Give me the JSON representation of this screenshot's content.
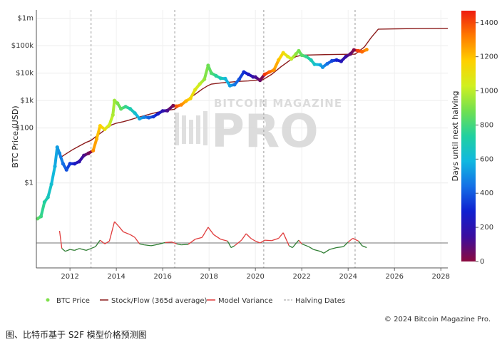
{
  "chart_data": {
    "type": "line",
    "ylabel": "BTC Price (USD)",
    "y_scale": "log",
    "y_ticks": [
      {
        "value": 1,
        "label": "$1"
      },
      {
        "value": 100,
        "label": "$100"
      },
      {
        "value": 1000,
        "label": "$1k"
      },
      {
        "value": 10000,
        "label": "$10k"
      },
      {
        "value": 100000,
        "label": "$100k"
      },
      {
        "value": 1000000,
        "label": "$1m"
      }
    ],
    "x_ticks": [
      "2012",
      "2014",
      "2016",
      "2018",
      "2020",
      "2022",
      "2024",
      "2026",
      "2028"
    ],
    "x_range": [
      2010.55,
      2028.3
    ],
    "y_range": [
      0.0008,
      2000000
    ],
    "halving_dates": [
      2012.91,
      2016.52,
      2020.36,
      2024.3
    ],
    "series": [
      {
        "name": "BTC Price",
        "color_by": "days_until_next_halving",
        "points": [
          [
            2010.6,
            0.05
          ],
          [
            2010.75,
            0.06
          ],
          [
            2010.9,
            0.2
          ],
          [
            2011.05,
            0.3
          ],
          [
            2011.2,
            0.9
          ],
          [
            2011.35,
            4
          ],
          [
            2011.45,
            20
          ],
          [
            2011.55,
            12
          ],
          [
            2011.7,
            5
          ],
          [
            2011.85,
            3
          ],
          [
            2012.0,
            5
          ],
          [
            2012.2,
            5
          ],
          [
            2012.4,
            6
          ],
          [
            2012.6,
            10
          ],
          [
            2012.8,
            12
          ],
          [
            2013.0,
            15
          ],
          [
            2013.15,
            40
          ],
          [
            2013.3,
            120
          ],
          [
            2013.5,
            90
          ],
          [
            2013.7,
            130
          ],
          [
            2013.85,
            300
          ],
          [
            2013.92,
            1000
          ],
          [
            2014.05,
            800
          ],
          [
            2014.2,
            500
          ],
          [
            2014.4,
            600
          ],
          [
            2014.6,
            500
          ],
          [
            2014.8,
            350
          ],
          [
            2015.0,
            220
          ],
          [
            2015.2,
            250
          ],
          [
            2015.4,
            240
          ],
          [
            2015.6,
            260
          ],
          [
            2015.8,
            330
          ],
          [
            2016.0,
            420
          ],
          [
            2016.2,
            430
          ],
          [
            2016.45,
            650
          ],
          [
            2016.6,
            620
          ],
          [
            2016.8,
            700
          ],
          [
            2017.0,
            950
          ],
          [
            2017.2,
            1200
          ],
          [
            2017.4,
            2500
          ],
          [
            2017.6,
            4000
          ],
          [
            2017.8,
            6000
          ],
          [
            2017.96,
            19000
          ],
          [
            2018.1,
            10000
          ],
          [
            2018.3,
            8000
          ],
          [
            2018.5,
            6500
          ],
          [
            2018.7,
            6300
          ],
          [
            2018.9,
            3500
          ],
          [
            2019.1,
            3800
          ],
          [
            2019.3,
            6000
          ],
          [
            2019.5,
            11000
          ],
          [
            2019.7,
            9000
          ],
          [
            2019.9,
            7300
          ],
          [
            2020.0,
            7200
          ],
          [
            2020.2,
            5500
          ],
          [
            2020.4,
            9000
          ],
          [
            2020.6,
            11000
          ],
          [
            2020.8,
            13000
          ],
          [
            2021.0,
            30000
          ],
          [
            2021.2,
            55000
          ],
          [
            2021.4,
            40000
          ],
          [
            2021.55,
            33000
          ],
          [
            2021.75,
            50000
          ],
          [
            2021.87,
            65000
          ],
          [
            2022.0,
            45000
          ],
          [
            2022.2,
            40000
          ],
          [
            2022.4,
            30000
          ],
          [
            2022.55,
            21000
          ],
          [
            2022.8,
            20000
          ],
          [
            2022.9,
            16500
          ],
          [
            2023.1,
            22000
          ],
          [
            2023.3,
            28000
          ],
          [
            2023.5,
            30000
          ],
          [
            2023.7,
            27000
          ],
          [
            2023.9,
            40000
          ],
          [
            2024.1,
            50000
          ],
          [
            2024.25,
            70000
          ],
          [
            2024.45,
            65000
          ],
          [
            2024.6,
            60000
          ],
          [
            2024.8,
            72000
          ]
        ]
      },
      {
        "name": "Stock/Flow (365d average)",
        "color": "#8b1a1a",
        "points": [
          [
            2011.55,
            8
          ],
          [
            2011.8,
            11
          ],
          [
            2012.1,
            16
          ],
          [
            2012.4,
            22
          ],
          [
            2012.7,
            30
          ],
          [
            2012.9,
            35
          ],
          [
            2013.2,
            55
          ],
          [
            2013.5,
            85
          ],
          [
            2013.8,
            130
          ],
          [
            2014.0,
            150
          ],
          [
            2014.3,
            170
          ],
          [
            2014.6,
            200
          ],
          [
            2014.9,
            240
          ],
          [
            2015.2,
            280
          ],
          [
            2015.5,
            330
          ],
          [
            2015.8,
            380
          ],
          [
            2016.1,
            430
          ],
          [
            2016.5,
            480
          ],
          [
            2016.8,
            700
          ],
          [
            2017.1,
            1100
          ],
          [
            2017.4,
            1700
          ],
          [
            2017.7,
            2600
          ],
          [
            2017.95,
            3500
          ],
          [
            2018.1,
            4000
          ],
          [
            2018.5,
            4400
          ],
          [
            2018.9,
            4700
          ],
          [
            2019.3,
            5000
          ],
          [
            2019.7,
            5200
          ],
          [
            2020.0,
            5500
          ],
          [
            2020.3,
            5600
          ],
          [
            2020.7,
            9000
          ],
          [
            2021.1,
            17000
          ],
          [
            2021.5,
            30000
          ],
          [
            2021.75,
            40000
          ],
          [
            2022.0,
            45000
          ],
          [
            2022.5,
            46000
          ],
          [
            2023.0,
            47000
          ],
          [
            2023.5,
            48000
          ],
          [
            2024.0,
            48500
          ],
          [
            2024.3,
            49000
          ],
          [
            2024.7,
            90000
          ],
          [
            2025.0,
            200000
          ],
          [
            2025.3,
            400000
          ],
          [
            2026.0,
            410000
          ],
          [
            2027.0,
            420000
          ],
          [
            2028.3,
            430000
          ]
        ]
      },
      {
        "name": "Model Variance",
        "color_positive": "#e03c3c",
        "color_negative": "#2e7d32",
        "points": [
          [
            2011.55,
            1.3
          ],
          [
            2011.65,
            -0.6
          ],
          [
            2011.8,
            -0.9
          ],
          [
            2012.0,
            -0.7
          ],
          [
            2012.2,
            -0.8
          ],
          [
            2012.4,
            -0.6
          ],
          [
            2012.7,
            -0.8
          ],
          [
            2012.9,
            -0.6
          ],
          [
            2013.1,
            -0.4
          ],
          [
            2013.3,
            0.3
          ],
          [
            2013.5,
            -0.1
          ],
          [
            2013.7,
            0.2
          ],
          [
            2013.92,
            2.3
          ],
          [
            2014.1,
            1.8
          ],
          [
            2014.3,
            1.2
          ],
          [
            2014.6,
            0.9
          ],
          [
            2014.8,
            0.6
          ],
          [
            2015.0,
            -0.1
          ],
          [
            2015.2,
            -0.2
          ],
          [
            2015.5,
            -0.3
          ],
          [
            2015.8,
            -0.15
          ],
          [
            2016.1,
            0.05
          ],
          [
            2016.4,
            0.1
          ],
          [
            2016.6,
            -0.1
          ],
          [
            2016.8,
            -0.2
          ],
          [
            2017.1,
            -0.15
          ],
          [
            2017.4,
            0.4
          ],
          [
            2017.7,
            0.6
          ],
          [
            2017.96,
            1.7
          ],
          [
            2018.2,
            0.9
          ],
          [
            2018.5,
            0.4
          ],
          [
            2018.8,
            0.2
          ],
          [
            2018.95,
            -0.5
          ],
          [
            2019.1,
            -0.3
          ],
          [
            2019.4,
            0.3
          ],
          [
            2019.6,
            1.0
          ],
          [
            2019.8,
            0.5
          ],
          [
            2020.0,
            0.2
          ],
          [
            2020.2,
            0.0
          ],
          [
            2020.4,
            0.3
          ],
          [
            2020.7,
            0.25
          ],
          [
            2021.0,
            0.5
          ],
          [
            2021.2,
            1.1
          ],
          [
            2021.45,
            -0.3
          ],
          [
            2021.6,
            -0.5
          ],
          [
            2021.87,
            0.3
          ],
          [
            2022.0,
            -0.1
          ],
          [
            2022.3,
            -0.4
          ],
          [
            2022.5,
            -0.7
          ],
          [
            2022.8,
            -0.9
          ],
          [
            2022.95,
            -1.1
          ],
          [
            2023.2,
            -0.7
          ],
          [
            2023.5,
            -0.5
          ],
          [
            2023.8,
            -0.4
          ],
          [
            2024.0,
            0.1
          ],
          [
            2024.2,
            0.5
          ],
          [
            2024.45,
            0.2
          ],
          [
            2024.6,
            -0.3
          ],
          [
            2024.8,
            -0.5
          ]
        ]
      },
      {
        "name": "Halving Dates",
        "color": "#999999",
        "style": "dashed"
      }
    ],
    "colorbar": {
      "label": "Days until next halving",
      "min": 0,
      "max": 1470,
      "ticks": [
        0,
        200,
        400,
        600,
        800,
        1000,
        1200,
        1400
      ]
    },
    "legend_placement": "bottom",
    "grid": true
  },
  "watermark": {
    "top": "BITCOIN MAGAZINE",
    "bottom": "PRO"
  },
  "copyright": "© 2024 Bitcoin Magazine Pro.",
  "caption": "图、比特币基于 S2F 模型价格预测图"
}
